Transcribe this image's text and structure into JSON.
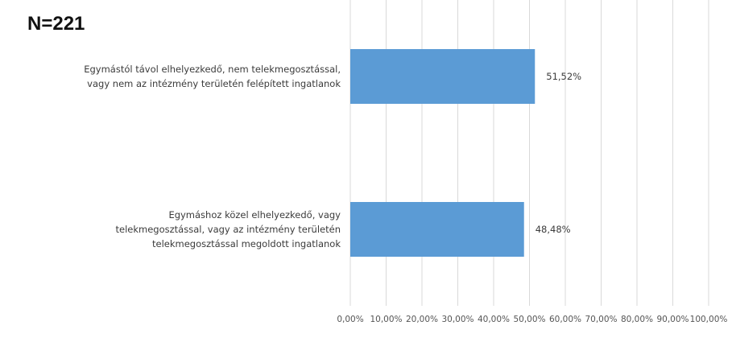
{
  "header": {
    "n_label": "N=221"
  },
  "chart_data": {
    "type": "bar",
    "orientation": "horizontal",
    "categories": [
      [
        "Egymástól távol elhelyezkedő, nem telekmegosztással,",
        "vagy nem az intézmény területén felépített ingatlanok"
      ],
      [
        "Egymáshoz közel elhelyezkedő, vagy",
        "telekmegosztással, vagy az intézmény területén",
        "telekmegosztással megoldott ingatlanok"
      ]
    ],
    "values": [
      51.52,
      48.48
    ],
    "value_labels": [
      "51,52%",
      "48,48%"
    ],
    "xlim": [
      0,
      100
    ],
    "xticks": [
      "0,00%",
      "10,00%",
      "20,00%",
      "30,00%",
      "40,00%",
      "50,00%",
      "60,00%",
      "70,00%",
      "80,00%",
      "90,00%",
      "100,00%"
    ],
    "grid": true,
    "bar_color": "#5b9bd5",
    "gridline_color": "#d9d9d9"
  }
}
